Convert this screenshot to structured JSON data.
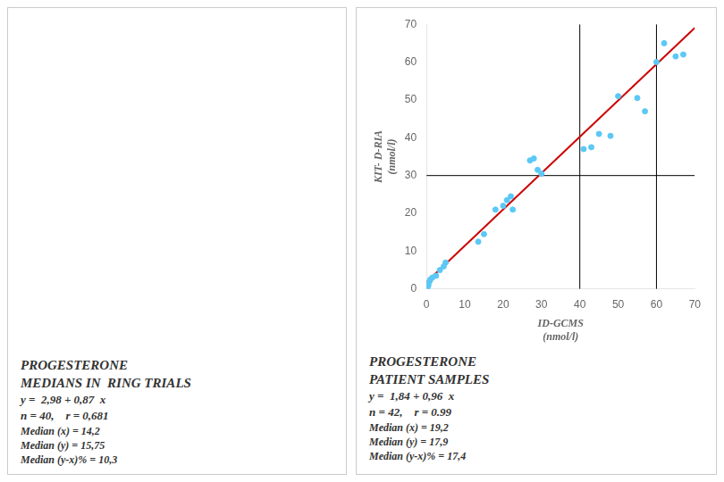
{
  "chart_data": {
    "type": "scatter",
    "xlabel": [
      "ID-GCMS",
      "(nmol/l)"
    ],
    "ylabel": [
      "KIT- D-RIA",
      "(nmol/l)"
    ],
    "xlim": [
      0,
      70
    ],
    "ylim": [
      0,
      70
    ],
    "xticks": [
      0,
      10,
      20,
      30,
      40,
      50,
      60,
      70
    ],
    "yticks": [
      0,
      10,
      20,
      30,
      40,
      50,
      60,
      70
    ],
    "grid": false,
    "series": [
      {
        "type": "scatter",
        "color": "#5BC8F5",
        "x": [
          0.3,
          0.5,
          0.8,
          1.0,
          1.5,
          2.5,
          3.5,
          4.5,
          5.0,
          13.5,
          15.0,
          18.0,
          20.0,
          21.0,
          22.0,
          22.5,
          27.0,
          28.0,
          29.0,
          30.0,
          41.0,
          43.0,
          45.0,
          48.0,
          50.0,
          55.0,
          57.0,
          60.0,
          62.0,
          65.0,
          67.0
        ],
        "values": [
          0.5,
          1.0,
          2.0,
          2.5,
          3.0,
          3.5,
          5.0,
          6.0,
          7.0,
          12.5,
          14.5,
          21.0,
          22.0,
          23.5,
          24.5,
          21.0,
          34.0,
          34.5,
          31.5,
          30.5,
          37.0,
          37.5,
          41.0,
          40.5,
          51.0,
          50.5,
          47.0,
          60.0,
          65.0,
          61.5,
          62.0
        ]
      },
      {
        "type": "line",
        "color": "#CC0000",
        "x": [
          0,
          70
        ],
        "values": [
          1.84,
          69.04
        ]
      }
    ],
    "ref_lines": {
      "x": [
        40,
        60
      ],
      "y": [
        30
      ],
      "color": "#000000"
    },
    "annotations": [
      [
        "PROGESTERONE",
        "MEDIANS IN  RING TRIALS",
        "y =  2,98 + 0,87  x",
        "n = 40,    r = 0,681",
        "Median (x) = 14,2",
        "Median (y) = 15,75",
        "Median (y-x)% = 10,3"
      ],
      [
        "PROGESTERONE",
        "PATIENT SAMPLES",
        "y =  1,84 + 0,96  x",
        "n = 42,    r = 0.99",
        "Median (x) = 19,2",
        "Median (y) = 17,9",
        "Median (y-x)% = 17,4"
      ]
    ]
  }
}
